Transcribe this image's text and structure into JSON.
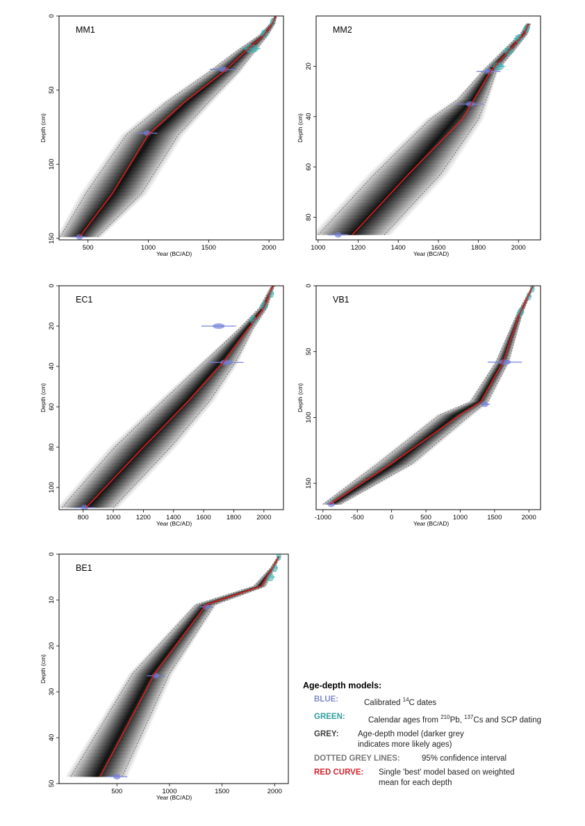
{
  "chart_data": [
    {
      "type": "line",
      "title": "MM1",
      "xlabel": "Year (BC/AD)",
      "ylabel": "Depth (cm)",
      "xlim": [
        260,
        2120
      ],
      "ylim": [
        0,
        151
      ],
      "xticks": [
        500,
        1000,
        1500,
        2000
      ],
      "yticks": [
        0,
        50,
        100,
        150
      ],
      "best_model": [
        [
          430,
          149
        ],
        [
          700,
          120
        ],
        [
          1000,
          80
        ],
        [
          1300,
          58
        ],
        [
          1620,
          38
        ],
        [
          1830,
          22
        ],
        [
          1960,
          13
        ],
        [
          2030,
          5
        ],
        [
          2055,
          0
        ]
      ],
      "ci_lower": [
        [
          270,
          149
        ],
        [
          480,
          120
        ],
        [
          820,
          80
        ],
        [
          1150,
          58
        ],
        [
          1500,
          38
        ],
        [
          1760,
          22
        ],
        [
          1920,
          13
        ],
        [
          2010,
          5
        ],
        [
          2045,
          0
        ]
      ],
      "ci_upper": [
        [
          580,
          149
        ],
        [
          940,
          120
        ],
        [
          1250,
          80
        ],
        [
          1500,
          58
        ],
        [
          1740,
          38
        ],
        [
          1900,
          22
        ],
        [
          1990,
          13
        ],
        [
          2050,
          5
        ],
        [
          2065,
          0
        ]
      ],
      "c14_dates": [
        [
          430,
          149,
          110
        ],
        [
          990,
          79,
          170
        ],
        [
          1620,
          36,
          220
        ]
      ],
      "pb_dates": [
        [
          1855,
          22,
          110
        ],
        [
          1960,
          12,
          45
        ],
        [
          2030,
          4,
          25
        ]
      ]
    },
    {
      "type": "line",
      "title": "MM2",
      "xlabel": "Year (BC/AD)",
      "ylabel": "Depth (cm)",
      "xlim": [
        990,
        2110
      ],
      "ylim": [
        0,
        89
      ],
      "xticks": [
        1000,
        1200,
        1400,
        1600,
        1800,
        2000
      ],
      "yticks": [
        20,
        40,
        60,
        80
      ],
      "best_model": [
        [
          1170,
          87
        ],
        [
          1450,
          63
        ],
        [
          1720,
          41
        ],
        [
          1780,
          33
        ],
        [
          1860,
          22
        ],
        [
          1950,
          14
        ],
        [
          2030,
          7
        ],
        [
          2050,
          3
        ]
      ],
      "ci_lower": [
        [
          1000,
          87
        ],
        [
          1280,
          63
        ],
        [
          1560,
          41
        ],
        [
          1700,
          33
        ],
        [
          1820,
          22
        ],
        [
          1920,
          14
        ],
        [
          2010,
          7
        ],
        [
          2040,
          3
        ]
      ],
      "ci_upper": [
        [
          1330,
          87
        ],
        [
          1610,
          63
        ],
        [
          1800,
          41
        ],
        [
          1840,
          33
        ],
        [
          1890,
          22
        ],
        [
          1975,
          14
        ],
        [
          2045,
          7
        ],
        [
          2060,
          3
        ]
      ],
      "c14_dates": [
        [
          1100,
          87,
          100
        ],
        [
          1760,
          35,
          130
        ],
        [
          1850,
          22,
          120
        ]
      ],
      "pb_dates": [
        [
          1900,
          20,
          50
        ],
        [
          1950,
          14,
          40
        ],
        [
          2000,
          9,
          35
        ],
        [
          2040,
          5,
          25
        ]
      ]
    },
    {
      "type": "line",
      "title": "EC1",
      "xlabel": "Year (BC/AD)",
      "ylabel": "Depth (cm)",
      "xlim": [
        640,
        2130
      ],
      "ylim": [
        0,
        111
      ],
      "xticks": [
        800,
        1000,
        1200,
        1400,
        1600,
        1800,
        2000
      ],
      "yticks": [
        0,
        20,
        40,
        60,
        80,
        100
      ],
      "best_model": [
        [
          820,
          110
        ],
        [
          1200,
          80
        ],
        [
          1500,
          57
        ],
        [
          1730,
          38
        ],
        [
          1900,
          21
        ],
        [
          2000,
          11
        ],
        [
          2060,
          0
        ]
      ],
      "ci_lower": [
        [
          660,
          110
        ],
        [
          1010,
          80
        ],
        [
          1330,
          57
        ],
        [
          1600,
          38
        ],
        [
          1840,
          21
        ],
        [
          1970,
          11
        ],
        [
          2050,
          0
        ]
      ],
      "ci_upper": [
        [
          1000,
          110
        ],
        [
          1380,
          80
        ],
        [
          1640,
          57
        ],
        [
          1810,
          38
        ],
        [
          1930,
          21
        ],
        [
          2020,
          11
        ],
        [
          2070,
          0
        ]
      ],
      "c14_dates": [
        [
          810,
          110,
          140
        ],
        [
          1700,
          20,
          230
        ],
        [
          1750,
          38,
          230
        ]
      ],
      "pb_dates": [
        [
          1930,
          17,
          40
        ],
        [
          2000,
          10,
          40
        ],
        [
          2050,
          4,
          25
        ]
      ]
    },
    {
      "type": "line",
      "title": "VB1",
      "xlabel": "Year (BC/AD)",
      "ylabel": "Depth (cm)",
      "xlim": [
        -1100,
        2170
      ],
      "ylim": [
        0,
        170
      ],
      "xticks": [
        -1000,
        -500,
        0,
        500,
        1000,
        1500,
        2000
      ],
      "yticks": [
        0,
        50,
        100,
        150
      ],
      "best_model": [
        [
          -900,
          166
        ],
        [
          0,
          135
        ],
        [
          1000,
          98
        ],
        [
          1300,
          88
        ],
        [
          1620,
          58
        ],
        [
          1860,
          22
        ],
        [
          2060,
          0
        ]
      ],
      "ci_lower": [
        [
          -1000,
          166
        ],
        [
          -200,
          135
        ],
        [
          700,
          98
        ],
        [
          1150,
          88
        ],
        [
          1520,
          58
        ],
        [
          1820,
          22
        ],
        [
          2050,
          0
        ]
      ],
      "ci_upper": [
        [
          -750,
          166
        ],
        [
          300,
          135
        ],
        [
          1150,
          98
        ],
        [
          1400,
          88
        ],
        [
          1700,
          58
        ],
        [
          1900,
          22
        ],
        [
          2070,
          0
        ]
      ],
      "c14_dates": [
        [
          -880,
          166,
          120
        ],
        [
          1360,
          90,
          150
        ],
        [
          1650,
          58,
          500
        ]
      ],
      "pb_dates": [
        [
          1880,
          20,
          80
        ],
        [
          2000,
          8,
          60
        ],
        [
          2050,
          2,
          30
        ]
      ]
    },
    {
      "type": "line",
      "title": "BE1",
      "xlabel": "Year (BC/AD)",
      "ylabel": "Depth (cm)",
      "xlim": [
        -50,
        2130
      ],
      "ylim": [
        0,
        50
      ],
      "xticks": [
        500,
        1000,
        1500,
        2000
      ],
      "yticks": [
        0,
        10,
        20,
        30,
        40,
        50
      ],
      "best_model": [
        [
          340,
          48.5
        ],
        [
          860,
          26
        ],
        [
          1350,
          11
        ],
        [
          1870,
          7
        ],
        [
          1980,
          3
        ],
        [
          2040,
          0.5
        ]
      ],
      "ci_lower": [
        [
          60,
          48.5
        ],
        [
          650,
          26
        ],
        [
          1250,
          11
        ],
        [
          1800,
          7
        ],
        [
          1960,
          3
        ],
        [
          2030,
          0.5
        ]
      ],
      "ci_upper": [
        [
          550,
          48.5
        ],
        [
          1000,
          26
        ],
        [
          1430,
          11
        ],
        [
          1910,
          7
        ],
        [
          2000,
          3
        ],
        [
          2050,
          0.5
        ]
      ],
      "c14_dates": [
        [
          500,
          48.5,
          200
        ],
        [
          870,
          26.5,
          170
        ],
        [
          1350,
          11.5,
          120
        ]
      ],
      "pb_dates": [
        [
          1960,
          5,
          60
        ],
        [
          2000,
          3,
          50
        ],
        [
          2040,
          0.5,
          25
        ]
      ]
    }
  ],
  "legend": {
    "title": "Age-depth models:",
    "blue_key": "BLUE:",
    "blue_desc_pre": "Calibrated ",
    "blue_sup": "14",
    "blue_desc_post": "C dates",
    "green_key": "GREEN:",
    "green_desc_1": "Calendar ages from ",
    "green_sup_1": "210",
    "green_desc_2": "Pb, ",
    "green_sup_2": "137",
    "green_desc_3": "Cs and SCP dating",
    "grey_key": "GREY:",
    "grey_desc": "Age-depth model (darker grey indicates more likely ages)",
    "dotted_key": "DOTTED GREY LINES:",
    "dotted_desc": "95% confidence interval",
    "red_key": "RED CURVE:",
    "red_desc": "Single 'best' model based on weighted mean for each depth"
  },
  "colors": {
    "blue": "#7480d8",
    "green": "#3bb3b3",
    "red": "#e0201c",
    "grey": "#000000",
    "dotted": "#555555"
  }
}
